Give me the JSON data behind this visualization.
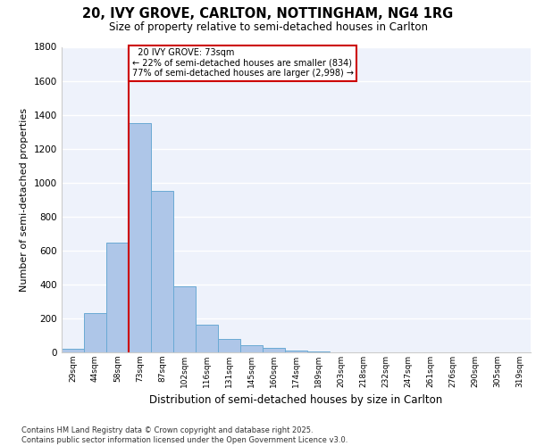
{
  "title_line1": "20, IVY GROVE, CARLTON, NOTTINGHAM, NG4 1RG",
  "title_line2": "Size of property relative to semi-detached houses in Carlton",
  "xlabel": "Distribution of semi-detached houses by size in Carlton",
  "ylabel": "Number of semi-detached properties",
  "categories": [
    "29sqm",
    "44sqm",
    "58sqm",
    "73sqm",
    "87sqm",
    "102sqm",
    "116sqm",
    "131sqm",
    "145sqm",
    "160sqm",
    "174sqm",
    "189sqm",
    "203sqm",
    "218sqm",
    "232sqm",
    "247sqm",
    "261sqm",
    "276sqm",
    "290sqm",
    "305sqm",
    "319sqm"
  ],
  "values": [
    20,
    230,
    645,
    1350,
    950,
    390,
    165,
    80,
    42,
    28,
    10,
    3,
    0,
    0,
    0,
    0,
    0,
    0,
    0,
    0,
    0
  ],
  "bar_color": "#aec6e8",
  "bar_edge_color": "#6aaad4",
  "property_label": "20 IVY GROVE: 73sqm",
  "pct_smaller": 22,
  "pct_larger": 77,
  "count_smaller": "834",
  "count_larger": "2,998",
  "vline_x_index": 3,
  "ylim": [
    0,
    1800
  ],
  "yticks": [
    0,
    200,
    400,
    600,
    800,
    1000,
    1200,
    1400,
    1600,
    1800
  ],
  "background_color": "#eef2fb",
  "grid_color": "#ffffff",
  "footer_line1": "Contains HM Land Registry data © Crown copyright and database right 2025.",
  "footer_line2": "Contains public sector information licensed under the Open Government Licence v3.0."
}
